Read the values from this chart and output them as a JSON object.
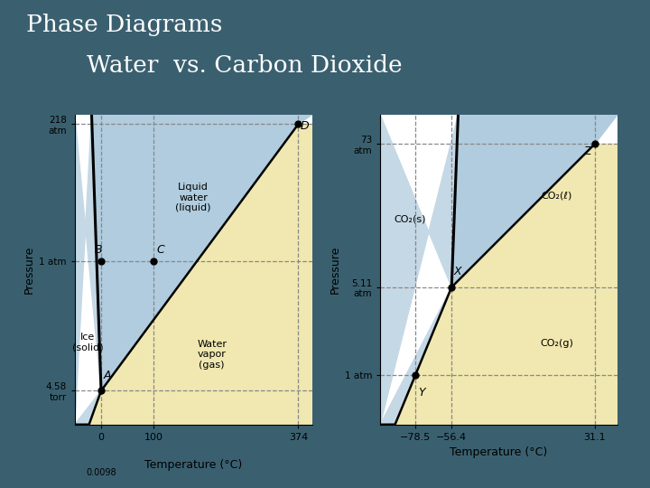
{
  "title_line1": "Phase Diagrams",
  "title_line2": "        Water  vs. Carbon Dioxide",
  "slide_bg": "#3a6070",
  "panel_bg": "#ffffff",
  "water": {
    "xlabel": "Temperature (°C)",
    "ylabel": "Pressure",
    "xticks": [
      0,
      100,
      374
    ],
    "xtick_extra_val": 0.0098,
    "xtick_extra_label": "0.0098",
    "ytick_vals": [
      0.006,
      1.0,
      218.0
    ],
    "ytick_labels": [
      "4.58\ntorr",
      "1 atm",
      "218\natm"
    ],
    "triple_T": 0.0098,
    "triple_P": 0.006,
    "critical_T": 374,
    "critical_P": 218,
    "melt_T": 0.0,
    "boil_T": 100,
    "p_1atm": 1.0,
    "solid_color": "#c5d8e5",
    "liquid_color": "#b0ccde",
    "gas_color": "#f0e8b0",
    "xmin": -50,
    "xmax": 400,
    "ymin_log": -2.8,
    "ymax_log": 2.5,
    "k_sub": 0.058,
    "label_solid": "Ice\n(solid)",
    "label_liquid": "Liquid\nwater\n(liquid)",
    "label_gas": "Water\nvapor\n(gas)",
    "point_labels": [
      "A",
      "B",
      "C",
      "D"
    ]
  },
  "co2": {
    "xlabel": "Temperature (°C)",
    "ylabel": "Pressure",
    "xticks": [
      -78.5,
      -56.4,
      31.1
    ],
    "xtick_labels": [
      "−78.5",
      "−56.4",
      "31.1"
    ],
    "ytick_vals": [
      1.0,
      5.11,
      73.0
    ],
    "ytick_labels": [
      "1 atm",
      "5.11\natm",
      "73\natm"
    ],
    "triple_T": -56.4,
    "triple_P": 5.11,
    "critical_T": 31.1,
    "critical_P": 73.0,
    "sublim_T": -78.5,
    "sublim_P": 1.0,
    "p_1atm": 1.0,
    "solid_color": "#c5d8e5",
    "liquid_color": "#b0ccde",
    "gas_color": "#f0e8b0",
    "xmin": -100,
    "xmax": 45,
    "ymin_log": -0.4,
    "ymax_log": 2.1,
    "label_solid": "CO₂(s)",
    "label_liquid": "CO₂(ℓ)",
    "label_gas": "CO₂(g)",
    "point_labels": [
      "X",
      "Y",
      "Z"
    ]
  }
}
